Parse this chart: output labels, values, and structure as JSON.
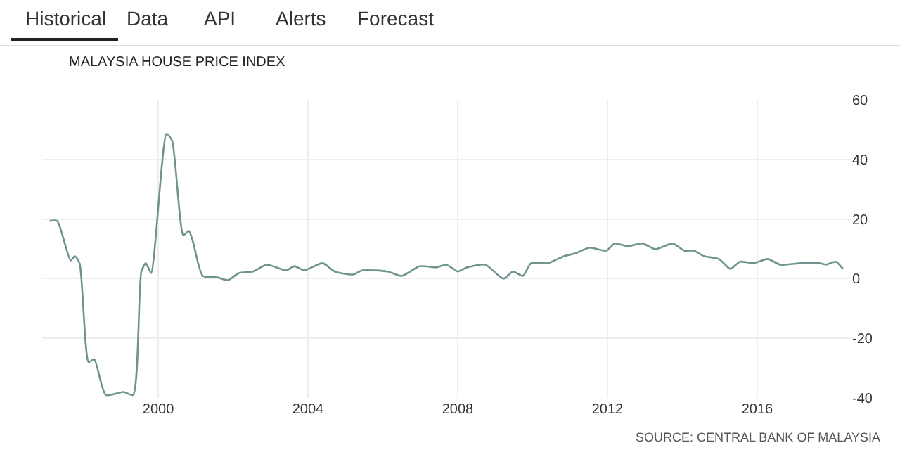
{
  "chart_data": {
    "type": "line",
    "title": "MALAYSIA HOUSE PRICE INDEX",
    "annotations": [
      "Historical",
      "Data",
      "API",
      "Alerts",
      "Forecast",
      "SOURCE: CENTRAL BANK OF MALAYSIA"
    ],
    "x": [
      1997.1,
      1997.3,
      1997.66,
      1997.77,
      1997.9,
      1998.14,
      1998.29,
      1998.6,
      1999.07,
      1999.33,
      1999.55,
      1999.67,
      1999.81,
      2000.22,
      2000.37,
      2000.67,
      2000.82,
      2000.93,
      2001.19,
      2001.56,
      2001.86,
      2002.16,
      2002.53,
      2002.9,
      2003.42,
      2003.64,
      2003.9,
      2004.39,
      2004.72,
      2005.2,
      2005.46,
      2006.13,
      2006.5,
      2006.99,
      2007.43,
      2007.7,
      2008.0,
      2008.25,
      2008.74,
      2009.22,
      2009.48,
      2009.74,
      2009.96,
      2010.41,
      2010.85,
      2011.15,
      2011.52,
      2011.97,
      2012.19,
      2012.53,
      2012.94,
      2013.27,
      2013.75,
      2014.05,
      2014.31,
      2014.57,
      2014.98,
      2015.28,
      2015.54,
      2015.91,
      2016.28,
      2016.62,
      2017.17,
      2017.66,
      2017.84,
      2018.1,
      2018.29
    ],
    "series": [
      {
        "color": "#6f9490",
        "values": [
          19.4,
          19.4,
          6.1,
          7.6,
          5.2,
          -28,
          -27,
          -39,
          -38,
          -39,
          2.4,
          5.2,
          1.9,
          48.6,
          46.3,
          14.6,
          16,
          12.3,
          0.9,
          0.5,
          -0.5,
          1.9,
          2.4,
          4.7,
          2.8,
          4.2,
          2.8,
          5.2,
          2.4,
          1.4,
          2.8,
          2.4,
          0.9,
          4.2,
          3.8,
          4.7,
          2.4,
          3.8,
          4.7,
          0,
          2.4,
          0.9,
          5.2,
          5.2,
          7.6,
          8.5,
          10.4,
          9.4,
          11.8,
          10.9,
          11.8,
          9.9,
          11.8,
          9.4,
          9.4,
          7.6,
          6.6,
          3.3,
          5.7,
          5.2,
          6.6,
          4.7,
          5.2,
          5.2,
          4.7,
          5.7,
          3.3
        ]
      }
    ],
    "xlim": [
      1996.9,
      2018.5
    ],
    "xticks": [
      2000,
      2004,
      2008,
      2012,
      2016
    ],
    "ylim": [
      -40,
      60
    ],
    "yticks": [
      -40,
      -20,
      0,
      20,
      40,
      60
    ],
    "grid": true,
    "marker": "none",
    "line_style": "solid"
  }
}
